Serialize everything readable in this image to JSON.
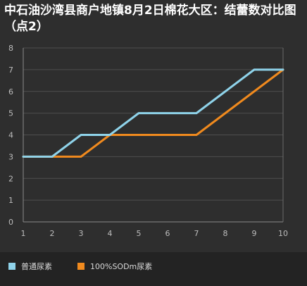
{
  "title": "中石油沙湾县商户地镇8月2日棉花大区：结蕾数对比图（点2）",
  "chart_data": {
    "type": "line",
    "title": "中石油沙湾县商户地镇8月2日棉花大区：结蕾数对比图（点2）",
    "x": [
      1,
      2,
      3,
      4,
      5,
      6,
      7,
      8,
      9,
      10
    ],
    "xticks": [
      "1",
      "2",
      "3",
      "4",
      "5",
      "6",
      "7",
      "8",
      "9",
      "10"
    ],
    "yticks": [
      "0",
      "1",
      "2",
      "3",
      "4",
      "5",
      "6",
      "7",
      "8"
    ],
    "xlim": [
      1,
      10
    ],
    "ylim": [
      0,
      8
    ],
    "grid": true,
    "legend": "bottom",
    "series": [
      {
        "name": "普通尿素",
        "color": "#8fd3ea",
        "values": [
          3,
          3,
          4,
          4,
          5,
          5,
          5,
          6,
          7,
          7
        ]
      },
      {
        "name": "100%SODm尿素",
        "color": "#f08a1e",
        "values": [
          3,
          3,
          3,
          4,
          4,
          4,
          4,
          5,
          6,
          7
        ]
      }
    ]
  }
}
